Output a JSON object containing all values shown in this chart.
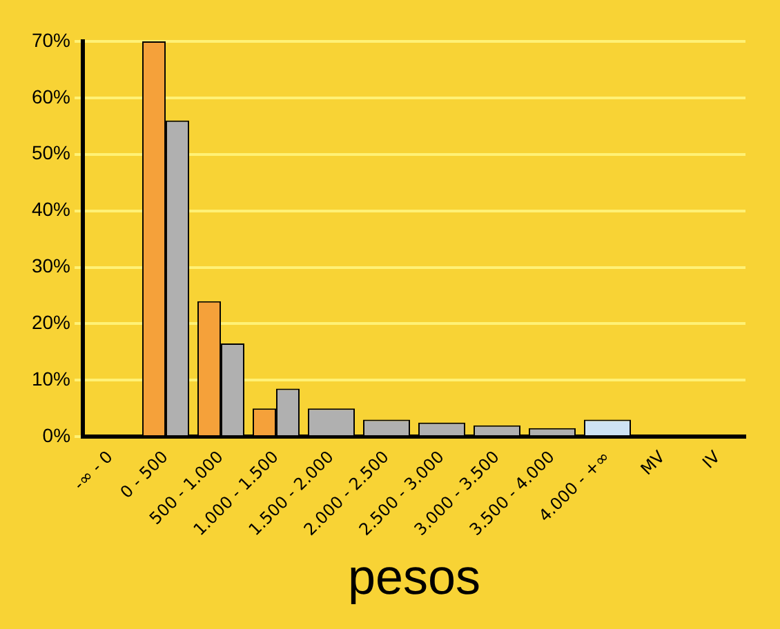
{
  "chart_data": {
    "type": "bar",
    "xlabel": "pesos",
    "categories": [
      "-∞ - 0",
      "0 - 500",
      "500 - 1.000",
      "1.000 - 1.500",
      "1.500 - 2.000",
      "2.000 - 2.500",
      "2.500 - 3.000",
      "3.000 - 3.500",
      "3.500 - 4.000",
      "4.000 - +∞",
      "MV",
      "IV"
    ],
    "series": [
      {
        "color": "#f5a13a",
        "values": [
          null,
          70,
          24,
          5,
          null,
          null,
          null,
          null,
          null,
          null,
          null,
          null
        ]
      },
      {
        "colors": [
          "#b0b0b0",
          "#b0b0b0",
          "#b0b0b0",
          "#b0b0b0",
          "#b0b0b0",
          "#b0b0b0",
          "#b0b0b0",
          "#b0b0b0",
          "#b0b0b0",
          "#cfe3f3",
          "#b0b0b0",
          "#b0b0b0"
        ],
        "values": [
          null,
          56,
          16.5,
          8.5,
          5,
          3,
          2.5,
          2,
          1.5,
          3,
          null,
          null
        ]
      }
    ],
    "ylim": [
      0,
      70
    ],
    "yticks": [
      {
        "value": 0,
        "label": "0%"
      },
      {
        "value": 10,
        "label": "10%"
      },
      {
        "value": 20,
        "label": "20%"
      },
      {
        "value": 30,
        "label": "30%"
      },
      {
        "value": 40,
        "label": "40%"
      },
      {
        "value": 50,
        "label": "50%"
      },
      {
        "value": 60,
        "label": "60%"
      },
      {
        "value": 70,
        "label": "70%"
      }
    ],
    "grid": "y",
    "legend": false
  }
}
